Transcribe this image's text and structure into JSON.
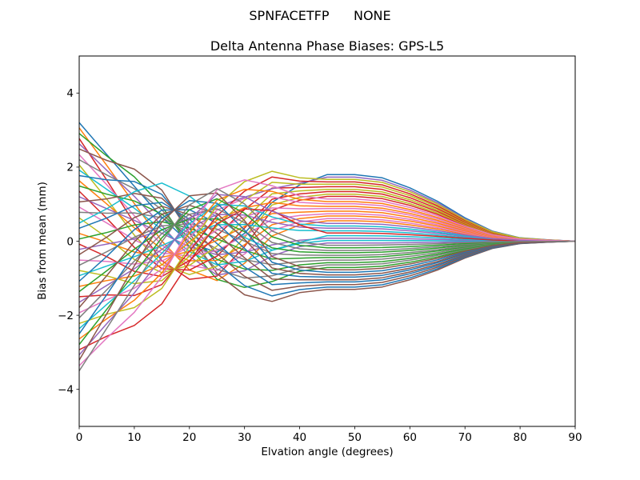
{
  "page": {
    "background": "#ffffff",
    "text_color": "#000000"
  },
  "chart_data": {
    "type": "line",
    "suptitle": "SPNFACETFP      NONE",
    "title": "Delta Antenna Phase Biases: GPS-L5",
    "xlabel": "Elvation angle (degrees)",
    "ylabel": "Bias from mean (mm)",
    "xlim": [
      0,
      90
    ],
    "ylim": [
      -5,
      5
    ],
    "xticks": [
      0,
      10,
      20,
      30,
      40,
      50,
      60,
      70,
      80,
      90
    ],
    "yticks": [
      -4,
      -2,
      0,
      2,
      4
    ],
    "ytick_labels": [
      "−4",
      "−2",
      "0",
      "2",
      "4"
    ],
    "grid": false,
    "legend": "none",
    "line_width": 1.5,
    "palette": [
      "#1f77b4",
      "#ff7f0e",
      "#2ca02c",
      "#d62728",
      "#9467bd",
      "#8c564b",
      "#e377c2",
      "#7f7f7f",
      "#bcbd22",
      "#17becf"
    ],
    "x": [
      0,
      5,
      10,
      15,
      20,
      25,
      30,
      35,
      40,
      45,
      50,
      55,
      60,
      65,
      70,
      75,
      80,
      85,
      90
    ],
    "series_rule": "y[j] = a*M1[j] + b*M2[j] + c*M3[j]; ~48 antenna-facet bias curves fan out from -3.5..3.2 mm at 0 deg elevation, oscillate through 0 near 10-35 deg, form an upper bundle peaking ~+1.8 mm and a lower bundle dipping ~-1.3 mm near 45-55 deg, and converge to 0 mm by 80-90 deg",
    "modes": {
      "M1": [
        0,
        0.05,
        0.1,
        0.2,
        0.35,
        0.5,
        0.65,
        0.8,
        0.9,
        1,
        1,
        0.95,
        0.8,
        0.6,
        0.35,
        0.15,
        0.05,
        0.02,
        0
      ],
      "M2": [
        1,
        0.7,
        0.4,
        0.08,
        -0.22,
        -0.38,
        -0.3,
        -0.12,
        -0.03,
        0,
        0,
        0,
        0,
        0,
        0,
        0,
        0,
        0,
        0
      ],
      "M3": [
        0,
        0.35,
        0.75,
        1,
        0.85,
        0.5,
        0.1,
        -0.2,
        -0.1,
        0,
        0,
        0,
        0,
        0,
        0,
        0,
        0,
        0,
        0
      ]
    },
    "series": [
      {
        "b": 3.2,
        "a": 1.8,
        "c": 0.03
      },
      {
        "b": 3.06,
        "a": 0.55,
        "c": -0.35
      },
      {
        "b": 2.91,
        "a": -0.71,
        "c": 0.86
      },
      {
        "b": 2.77,
        "a": 1.21,
        "c": -0.99
      },
      {
        "b": 2.63,
        "a": -0.05,
        "c": 0.22
      },
      {
        "b": 2.49,
        "a": -1.3,
        "c": 1.44
      },
      {
        "b": 2.34,
        "a": 0.61,
        "c": -0.41
      },
      {
        "b": 2.2,
        "a": -0.64,
        "c": 0.8
      },
      {
        "b": 2.06,
        "a": 1.27,
        "c": -1.05
      },
      {
        "b": 1.92,
        "a": 0.02,
        "c": 0.16
      },
      {
        "b": 1.77,
        "a": -1.24,
        "c": 1.37
      },
      {
        "b": 1.63,
        "a": 0.68,
        "c": -0.48
      },
      {
        "b": 1.49,
        "a": -0.58,
        "c": 0.73
      },
      {
        "b": 1.35,
        "a": 1.34,
        "c": -1.12
      },
      {
        "b": 1.2,
        "a": 0.08,
        "c": 0.1
      },
      {
        "b": 1.06,
        "a": -1.17,
        "c": 1.31
      },
      {
        "b": 0.92,
        "a": 0.74,
        "c": -0.54
      },
      {
        "b": 0.78,
        "a": -0.51,
        "c": 0.67
      },
      {
        "b": 0.63,
        "a": 1.4,
        "c": -1.18
      },
      {
        "b": 0.49,
        "a": 0.15,
        "c": 1.5
      },
      {
        "b": 0.35,
        "a": -1.1,
        "c": 1.24
      },
      {
        "b": 0.21,
        "a": 0.81,
        "c": -0.61
      },
      {
        "b": 0.06,
        "a": -0.44,
        "c": 0.61
      },
      {
        "b": -0.08,
        "a": 1.47,
        "c": -1.24
      },
      {
        "b": -0.22,
        "a": 1.73,
        "c": -0.03
      },
      {
        "b": -0.36,
        "a": -1.04,
        "c": 1.18
      },
      {
        "b": -0.51,
        "a": 0.88,
        "c": -0.67
      },
      {
        "b": -0.65,
        "a": -0.38,
        "c": 0.54
      },
      {
        "b": -0.79,
        "a": 1.54,
        "c": -1.31
      },
      {
        "b": -0.93,
        "a": 0.28,
        "c": -0.1
      },
      {
        "b": -1.08,
        "a": -0.97,
        "c": 1.12
      },
      {
        "b": -1.22,
        "a": 0.94,
        "c": -0.73
      },
      {
        "b": -1.36,
        "a": -0.31,
        "c": 0.48
      },
      {
        "b": -1.5,
        "a": 1.6,
        "c": -1.37
      },
      {
        "b": -1.65,
        "a": 0.35,
        "c": -0.16
      },
      {
        "b": -1.79,
        "a": -0.91,
        "c": 1.05
      },
      {
        "b": -1.93,
        "a": 1.01,
        "c": -0.8
      },
      {
        "b": -2.07,
        "a": -0.25,
        "c": 0.42
      },
      {
        "b": -2.22,
        "a": 1.67,
        "c": -1.43
      },
      {
        "b": -2.36,
        "a": 0.41,
        "c": -0.22
      },
      {
        "b": -2.5,
        "a": -0.84,
        "c": 0.99
      },
      {
        "b": -2.64,
        "a": 1.07,
        "c": -0.86
      },
      {
        "b": -2.79,
        "a": -0.18,
        "c": 0.35
      },
      {
        "b": -2.93,
        "a": 0.22,
        "c": -1.5
      },
      {
        "b": -3.07,
        "a": 0.48,
        "c": -0.29
      },
      {
        "b": -3.21,
        "a": -0.77,
        "c": 0.93
      },
      {
        "b": -3.36,
        "a": 1.14,
        "c": -0.92
      },
      {
        "b": -3.5,
        "a": -0.11,
        "c": 0.29
      }
    ]
  }
}
